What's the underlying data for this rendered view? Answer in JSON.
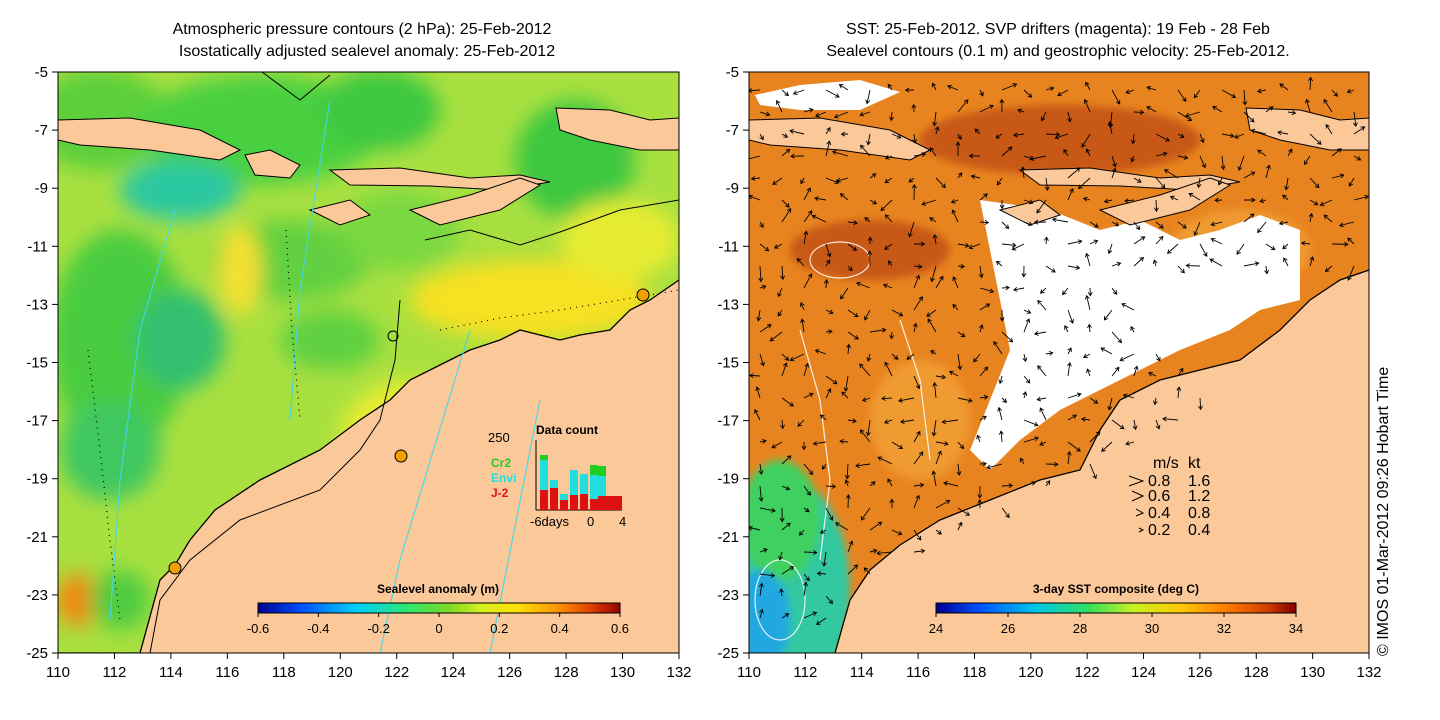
{
  "left_panel": {
    "title_line1": "Atmospheric pressure contours (2 hPa): 25-Feb-2012",
    "title_line2": "Isostatically adjusted sealevel anomaly: 25-Feb-2012",
    "y_ticks": [
      "-5",
      "-7",
      "-9",
      "-11",
      "-13",
      "-15",
      "-17",
      "-19",
      "-21",
      "-23",
      "-25"
    ],
    "x_ticks": [
      "110",
      "112",
      "114",
      "116",
      "118",
      "120",
      "122",
      "124",
      "126",
      "128",
      "130",
      "132"
    ],
    "colorbar_label": "Sealevel anomaly (m)",
    "colorbar_ticks": [
      "-0.6",
      "-0.4",
      "-0.2",
      "0",
      "0.2",
      "0.4",
      "0.6"
    ],
    "inset": {
      "title": "Data count",
      "y_max_label": "250",
      "x_labels": [
        "-6days",
        "0",
        "4"
      ],
      "legend": [
        {
          "label": "Cr2",
          "color": "#22cc22"
        },
        {
          "label": "Envi",
          "color": "#22dddd"
        },
        {
          "label": "J-2",
          "color": "#dd1111"
        }
      ]
    }
  },
  "right_panel": {
    "title_line1": "SST: 25-Feb-2012. SVP drifters (magenta): 19 Feb - 28 Feb",
    "title_line2": "Sealevel contours (0.1 m) and geostrophic velocity: 25-Feb-2012.",
    "y_ticks": [
      "-5",
      "-7",
      "-9",
      "-11",
      "-13",
      "-15",
      "-17",
      "-19",
      "-21",
      "-23",
      "-25"
    ],
    "x_ticks": [
      "110",
      "112",
      "114",
      "116",
      "118",
      "120",
      "122",
      "124",
      "126",
      "128",
      "130",
      "132"
    ],
    "colorbar_label": "3-day SST composite (deg C)",
    "colorbar_ticks": [
      "24",
      "26",
      "28",
      "30",
      "32",
      "34"
    ],
    "velocity_legend": {
      "header_ms": "m/s",
      "header_kt": "kt",
      "rows": [
        {
          "ms": "0.8",
          "kt": "1.6"
        },
        {
          "ms": "0.6",
          "kt": "1.2"
        },
        {
          "ms": "0.4",
          "kt": "0.8"
        },
        {
          "ms": "0.2",
          "kt": "0.4"
        }
      ]
    }
  },
  "credit": "© IMOS 01-Mar-2012 09:26 Hobart Time",
  "colors": {
    "land": "#fbc89a",
    "sla_cmap": [
      "#00008f",
      "#0050ff",
      "#00cfff",
      "#30e86a",
      "#5ad82a",
      "#c8f020",
      "#ffe000",
      "#ff9a00",
      "#e04000",
      "#900000"
    ],
    "sst_cmap": [
      "#00008f",
      "#0050ff",
      "#00c8e8",
      "#30e060",
      "#c8f020",
      "#ffc800",
      "#ff8000",
      "#d04000",
      "#800000"
    ]
  }
}
